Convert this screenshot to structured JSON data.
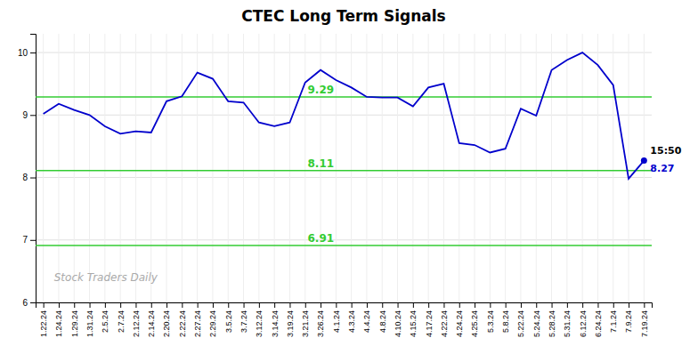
{
  "chart_data": {
    "type": "line",
    "title": "CTEC Long Term Signals",
    "categories": [
      "1.22.24",
      "1.24.24",
      "1.29.24",
      "1.31.24",
      "2.5.24",
      "2.7.24",
      "2.12.24",
      "2.14.24",
      "2.20.24",
      "2.22.24",
      "2.27.24",
      "2.29.24",
      "3.5.24",
      "3.7.24",
      "3.12.24",
      "3.14.24",
      "3.19.24",
      "3.21.24",
      "3.26.24",
      "4.1.24",
      "4.3.24",
      "4.4.24",
      "4.8.24",
      "4.10.24",
      "4.15.24",
      "4.17.24",
      "4.22.24",
      "4.24.24",
      "4.25.24",
      "5.3.24",
      "5.8.24",
      "5.22.24",
      "5.24.24",
      "5.28.24",
      "5.31.24",
      "6.12.24",
      "6.24.24",
      "7.1.24",
      "7.9.24",
      "7.19.24"
    ],
    "values": [
      9.02,
      9.18,
      9.08,
      9.0,
      8.82,
      8.7,
      8.74,
      8.72,
      9.22,
      9.3,
      9.68,
      9.58,
      9.22,
      9.2,
      8.88,
      8.82,
      8.88,
      9.52,
      9.72,
      9.56,
      9.44,
      9.29,
      9.28,
      9.28,
      9.14,
      9.44,
      9.5,
      8.55,
      8.52,
      8.4,
      8.46,
      9.1,
      8.99,
      9.72,
      9.88,
      10.0,
      9.8,
      9.48,
      7.98,
      8.27
    ],
    "color": "#0000cc",
    "ylim": [
      6.0,
      10.3
    ],
    "yticks": [
      6,
      7,
      8,
      9,
      10
    ],
    "grid": true,
    "reference_lines": [
      {
        "value": 9.29,
        "label": "9.29",
        "color": "#33cc33"
      },
      {
        "value": 8.11,
        "label": "8.11",
        "color": "#33cc33"
      },
      {
        "value": 6.91,
        "label": "6.91",
        "color": "#33cc33"
      }
    ],
    "annotations": [
      {
        "text": "15:50"
      },
      {
        "text": "8.27"
      }
    ],
    "watermark": "Stock Traders Daily"
  }
}
